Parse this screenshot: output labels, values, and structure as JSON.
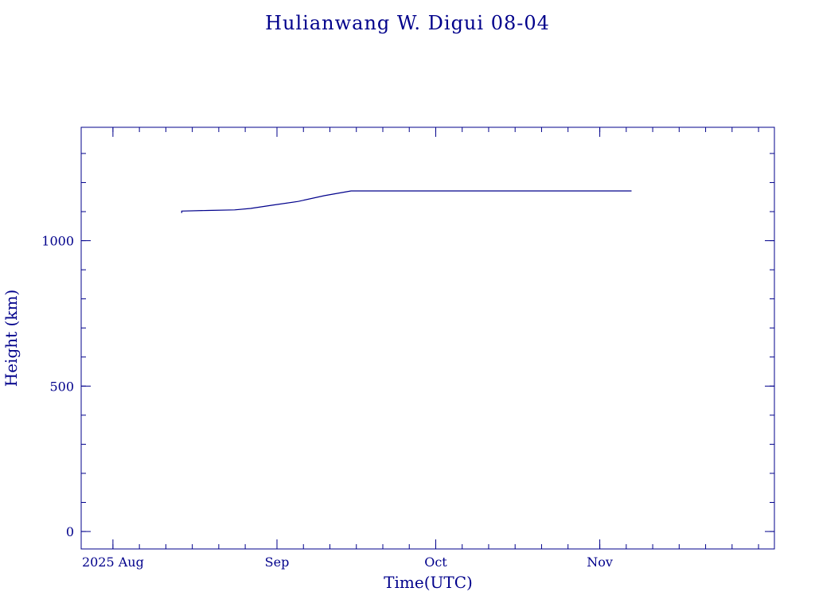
{
  "chart_data": {
    "type": "line",
    "title": "Hulianwang W. Digui 08-04",
    "xlabel": "Time(UTC)",
    "ylabel": "Height (km)",
    "x_start": "2025-07-26",
    "x_end": "2025-12-04",
    "ylim": [
      -60,
      1390
    ],
    "x_ticks": [
      {
        "date": "2025-08-01",
        "label": "2025 Aug"
      },
      {
        "date": "2025-09-01",
        "label": "Sep"
      },
      {
        "date": "2025-10-01",
        "label": "Oct"
      },
      {
        "date": "2025-11-01",
        "label": "Nov"
      }
    ],
    "x_minor_ticks": [
      "2025-08-01",
      "2025-08-06",
      "2025-08-11",
      "2025-08-16",
      "2025-08-21",
      "2025-08-26",
      "2025-09-01",
      "2025-09-06",
      "2025-09-11",
      "2025-09-16",
      "2025-09-21",
      "2025-09-26",
      "2025-10-01",
      "2025-10-06",
      "2025-10-11",
      "2025-10-16",
      "2025-10-21",
      "2025-10-26",
      "2025-11-01",
      "2025-11-06",
      "2025-11-11",
      "2025-11-16",
      "2025-11-21",
      "2025-11-26",
      "2025-12-01"
    ],
    "y_ticks": [
      {
        "value": 0,
        "label": "0"
      },
      {
        "value": 500,
        "label": "500"
      },
      {
        "value": 1000,
        "label": "1000"
      }
    ],
    "y_minor_step": 100,
    "grid": false,
    "series": [
      {
        "color": "#00008b",
        "points": [
          {
            "x": "2025-08-14",
            "y": 1095
          },
          {
            "x": "2025-08-14",
            "y": 1102
          },
          {
            "x": "2025-08-19",
            "y": 1104
          },
          {
            "x": "2025-08-24",
            "y": 1106
          },
          {
            "x": "2025-08-27",
            "y": 1111
          },
          {
            "x": "2025-08-31",
            "y": 1122
          },
          {
            "x": "2025-09-05",
            "y": 1135
          },
          {
            "x": "2025-09-10",
            "y": 1155
          },
          {
            "x": "2025-09-15",
            "y": 1171
          },
          {
            "x": "2025-10-01",
            "y": 1171
          },
          {
            "x": "2025-10-15",
            "y": 1171
          },
          {
            "x": "2025-11-01",
            "y": 1171
          },
          {
            "x": "2025-11-07",
            "y": 1171
          }
        ]
      }
    ]
  },
  "colors": {
    "axis": "#00008b",
    "line": "#00008b",
    "background": "#ffffff"
  }
}
